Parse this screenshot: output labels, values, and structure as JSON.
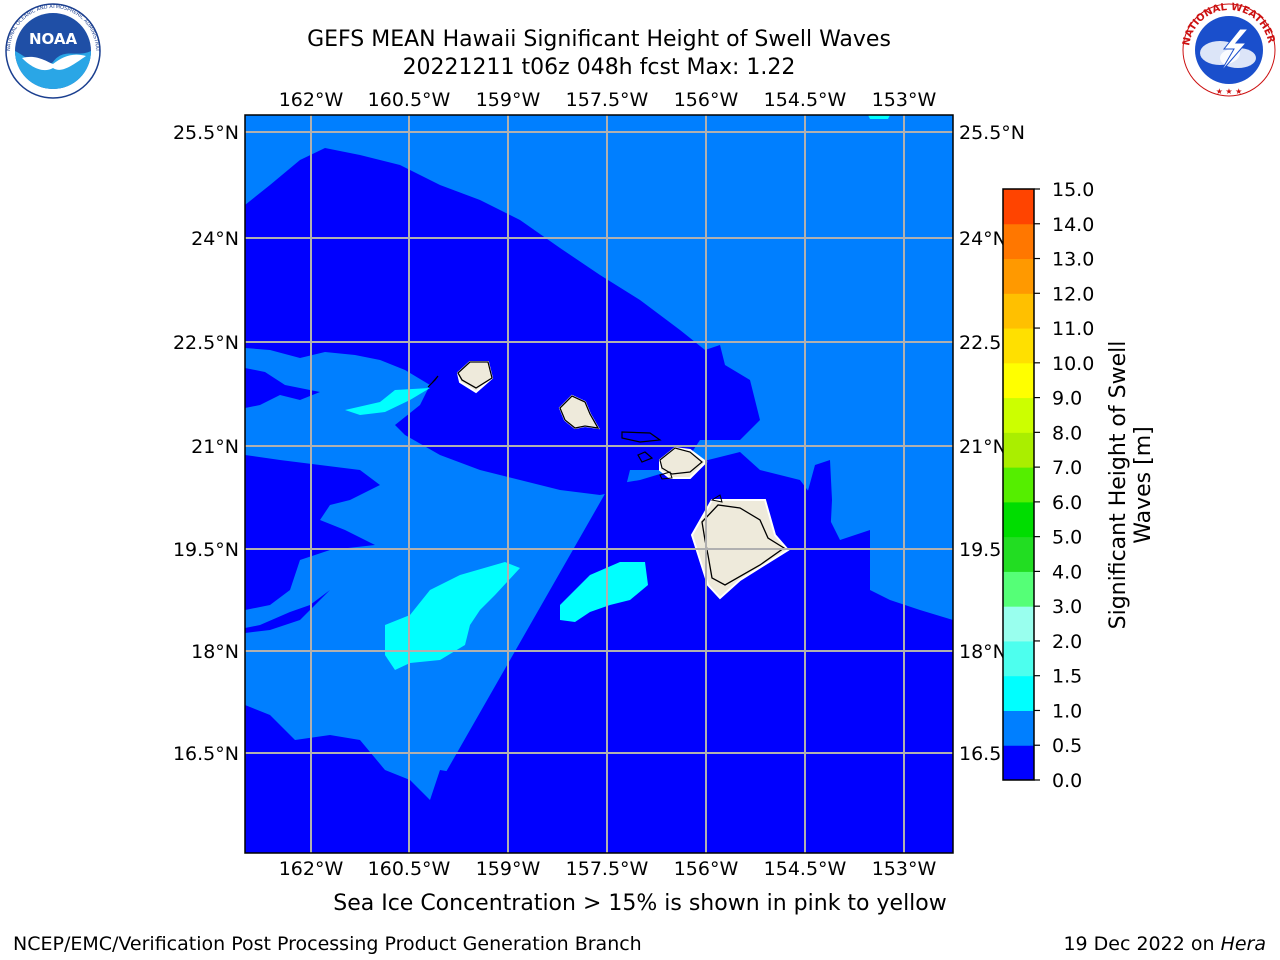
{
  "header": {
    "title_line1": "GEFS MEAN Hawaii Significant Height of Swell Waves",
    "title_line2": "20221211 t06z 048h fcst   Max: 1.22"
  },
  "logos": {
    "left": {
      "name": "noaa-logo",
      "text": "NOAA",
      "ring_text": "NATIONAL OCEANIC AND ATMOSPHERIC ADMINISTRATION · U.S. DEPARTMENT OF COMMERCE"
    },
    "right": {
      "name": "nws-logo",
      "ring_text": "NATIONAL WEATHER SERVICE"
    }
  },
  "map": {
    "lon_ticks": [
      "162°W",
      "160.5°W",
      "159°W",
      "157.5°W",
      "156°W",
      "154.5°W",
      "153°W"
    ],
    "lat_ticks": [
      "25.5°N",
      "24°N",
      "22.5°N",
      "21°N",
      "19.5°N",
      "18°N",
      "16.5°N"
    ],
    "lat_ticks_right": [
      "25.5°N",
      "24°N",
      "22.5",
      "21°N",
      "19.5",
      "18°N",
      "16.5"
    ],
    "colors": {
      "level_0_0_5": "#0000ff",
      "level_0_5_1_0": "#007fff",
      "level_1_0_1_5": "#00ffff",
      "land": "#eeeadb",
      "grid": "#b0b0b0"
    }
  },
  "colorbar": {
    "label_line1": "Significant Height of Swell",
    "label_line2": "Waves [m]",
    "ticks": [
      "0.0",
      "0.5",
      "1.0",
      "1.5",
      "2.0",
      "3.0",
      "4.0",
      "5.0",
      "6.0",
      "7.0",
      "8.0",
      "9.0",
      "10.0",
      "11.0",
      "12.0",
      "13.0",
      "14.0",
      "15.0"
    ],
    "colors": [
      "#0000ff",
      "#007fff",
      "#00ffff",
      "#4dffee",
      "#99ffee",
      "#55ff77",
      "#22dd22",
      "#00dd00",
      "#55ee00",
      "#aaee00",
      "#ccff00",
      "#ffff00",
      "#ffe000",
      "#ffc000",
      "#ff9900",
      "#ff7700",
      "#ff4400",
      "#ff0000"
    ]
  },
  "footer": {
    "subtitle": "Sea Ice Concentration > 15% is shown in pink to yellow",
    "credit": "NCEP/EMC/Verification Post Processing Product Generation Branch",
    "date": "19 Dec 2022 on ",
    "host": "Hera"
  }
}
